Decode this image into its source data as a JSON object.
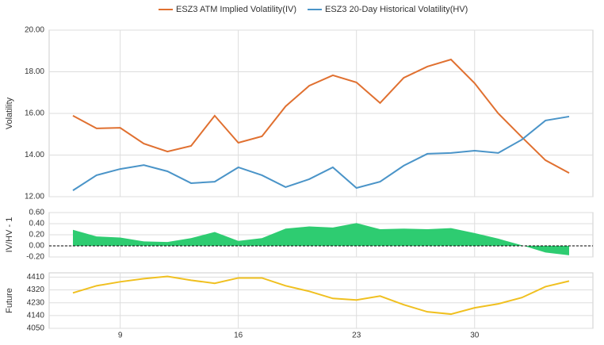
{
  "chart_data": [
    {
      "type": "line",
      "y_label": "Volatility",
      "categories": [
        null,
        null,
        "9",
        null,
        null,
        null,
        null,
        "16",
        null,
        null,
        null,
        null,
        "23",
        null,
        null,
        null,
        null,
        "30",
        null,
        null,
        null,
        null
      ],
      "series": [
        {
          "name": "ESZ3 ATM Implied Volatility(IV)",
          "color": "#e07030",
          "values": [
            15.89,
            15.28,
            15.31,
            14.55,
            14.17,
            14.44,
            15.89,
            14.59,
            14.9,
            16.34,
            17.33,
            17.83,
            17.49,
            16.5,
            17.71,
            18.25,
            18.59,
            17.45,
            16.0,
            14.86,
            13.75,
            13.14
          ]
        },
        {
          "name": "ESZ3 20-Day Historical Volatility(HV)",
          "color": "#4a94c8",
          "values": [
            12.3,
            13.03,
            13.33,
            13.52,
            13.22,
            12.65,
            12.72,
            13.41,
            13.03,
            12.46,
            12.84,
            13.41,
            12.42,
            12.72,
            13.49,
            14.06,
            14.1,
            14.21,
            14.1,
            14.74,
            15.66,
            15.85
          ]
        }
      ],
      "ylim": [
        12,
        20
      ],
      "yticks": [
        {
          "value": 12,
          "label": "12.00"
        },
        {
          "value": 14,
          "label": "14.00"
        },
        {
          "value": 16,
          "label": "16.00"
        },
        {
          "value": 18,
          "label": "18.00"
        },
        {
          "value": 20,
          "label": "20.00"
        }
      ],
      "grid": true
    },
    {
      "type": "area",
      "y_label": "IV/HV - 1",
      "categories": [
        null,
        null,
        "9",
        null,
        null,
        null,
        null,
        "16",
        null,
        null,
        null,
        null,
        "23",
        null,
        null,
        null,
        null,
        "30",
        null,
        null,
        null,
        null
      ],
      "color": "#2ecc71",
      "values": [
        0.29,
        0.17,
        0.15,
        0.08,
        0.07,
        0.14,
        0.25,
        0.09,
        0.14,
        0.31,
        0.35,
        0.33,
        0.41,
        0.3,
        0.31,
        0.3,
        0.32,
        0.23,
        0.13,
        0.01,
        -0.12,
        -0.17
      ],
      "ylim": [
        -0.2,
        0.6
      ],
      "yticks": [
        {
          "value": -0.2,
          "label": "-0.20"
        },
        {
          "value": 0,
          "label": "0.00"
        },
        {
          "value": 0.2,
          "label": "0.20"
        },
        {
          "value": 0.4,
          "label": "0.40"
        },
        {
          "value": 0.6,
          "label": "0.60"
        }
      ],
      "grid": true
    },
    {
      "type": "line",
      "y_label": "Future",
      "categories": [
        null,
        null,
        "9",
        null,
        null,
        null,
        null,
        "16",
        null,
        null,
        null,
        null,
        "23",
        null,
        null,
        null,
        null,
        "30",
        null,
        null,
        null,
        null
      ],
      "series": [
        {
          "color": "#f0c020",
          "values": [
            4299,
            4349,
            4377,
            4399,
            4415,
            4388,
            4366,
            4404,
            4404,
            4349,
            4310,
            4260,
            4249,
            4277,
            4216,
            4166,
            4150,
            4194,
            4222,
            4266,
            4343,
            4382
          ]
        }
      ],
      "ylim": [
        4050,
        4440
      ],
      "yticks": [
        4050,
        4140,
        4230,
        4320,
        4410
      ],
      "grid": true
    }
  ]
}
